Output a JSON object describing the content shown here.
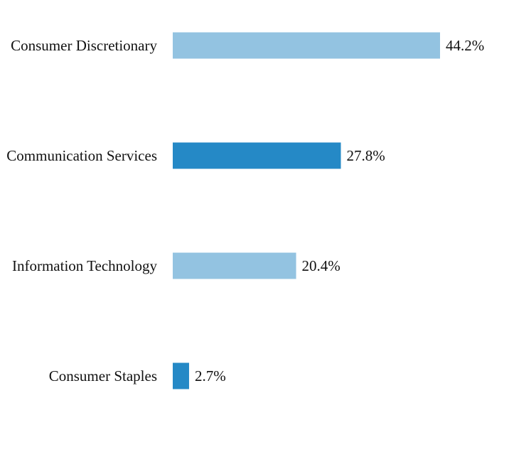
{
  "chart_data": {
    "type": "bar",
    "orientation": "horizontal",
    "categories": [
      "Consumer Discretionary",
      "Communication Services",
      "Information Technology",
      "Consumer Staples"
    ],
    "values": [
      44.2,
      27.8,
      20.4,
      2.7
    ],
    "value_labels": [
      "44.2%",
      "27.8%",
      "20.4%",
      "2.7%"
    ],
    "bar_colors": [
      "#93c3e1",
      "#2589c6",
      "#93c3e1",
      "#2589c6"
    ],
    "title": "",
    "xlabel": "",
    "ylabel": "",
    "xlim": [
      0,
      44.2
    ],
    "grid": false,
    "legend": "none"
  }
}
